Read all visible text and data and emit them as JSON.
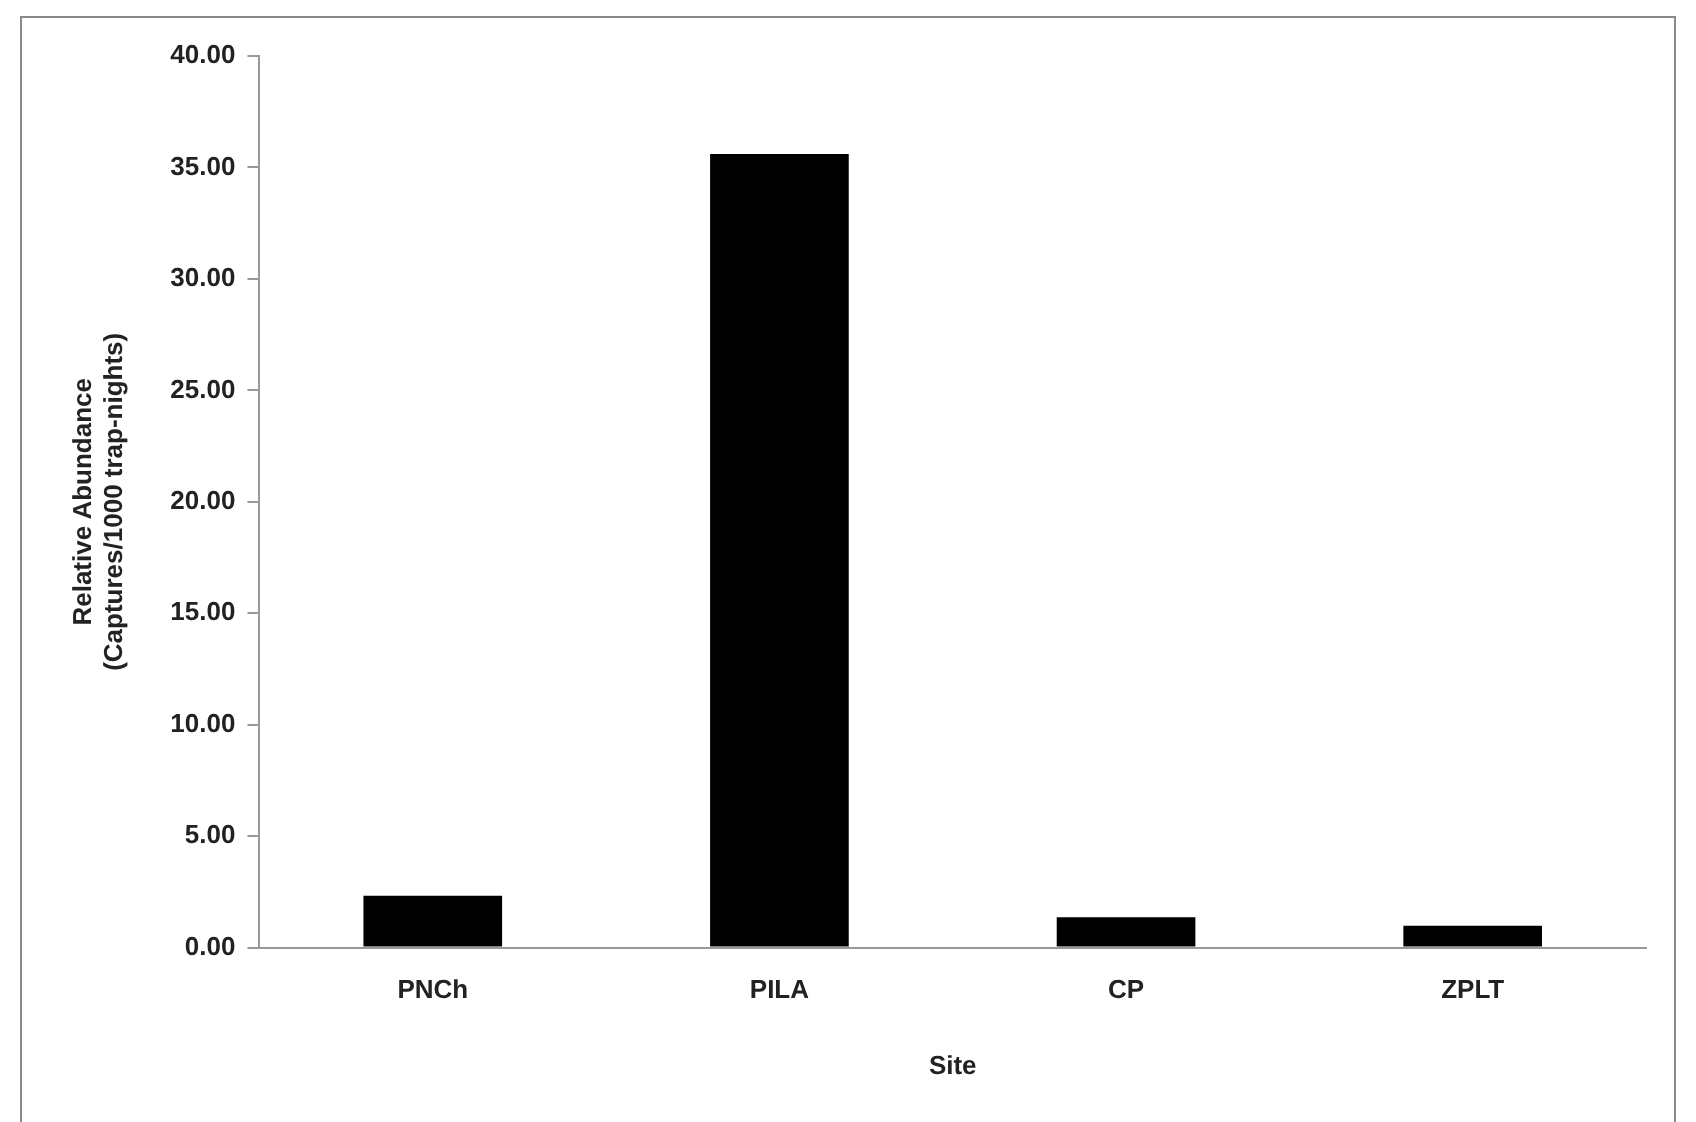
{
  "chart_data": {
    "type": "bar",
    "xlabel": "Site",
    "ylabel": "Relative Abundance\n(Captures/1000 trap-nights)",
    "categories": [
      "PNCh",
      "PILA",
      "CP",
      "ZPLT"
    ],
    "values": [
      2.33,
      35.6,
      1.36,
      0.98
    ],
    "color": "#000000",
    "ylim": [
      0,
      40
    ],
    "yticks": [
      {
        "value": 0,
        "label": "0.00"
      },
      {
        "value": 5,
        "label": "5.00"
      },
      {
        "value": 10,
        "label": "10.00"
      },
      {
        "value": 15,
        "label": "15.00"
      },
      {
        "value": 20,
        "label": "20.00"
      },
      {
        "value": 25,
        "label": "25.00"
      },
      {
        "value": 30,
        "label": "30.00"
      },
      {
        "value": 35,
        "label": "35.00"
      },
      {
        "value": 40,
        "label": "40.00"
      }
    ],
    "grid": false,
    "legend": false
  }
}
